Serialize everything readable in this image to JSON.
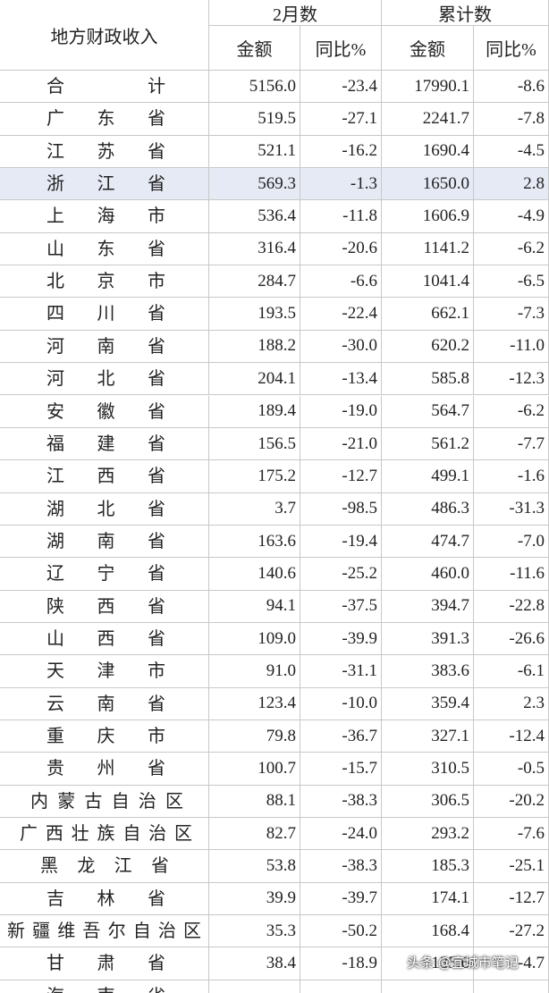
{
  "table": {
    "title": "地方财政收入",
    "groups": [
      "2月数",
      "累计数"
    ],
    "columns": [
      "金额",
      "同比%",
      "金额",
      "同比%"
    ],
    "rows": [
      [
        "合计",
        "5156.0",
        "-23.4",
        "17990.1",
        "-8.6"
      ],
      [
        "广东省",
        "519.5",
        "-27.1",
        "2241.7",
        "-7.8"
      ],
      [
        "江苏省",
        "521.1",
        "-16.2",
        "1690.4",
        "-4.5"
      ],
      [
        "浙江省",
        "569.3",
        "-1.3",
        "1650.0",
        "2.8"
      ],
      [
        "上海市",
        "536.4",
        "-11.8",
        "1606.9",
        "-4.9"
      ],
      [
        "山东省",
        "316.4",
        "-20.6",
        "1141.2",
        "-6.2"
      ],
      [
        "北京市",
        "284.7",
        "-6.6",
        "1041.4",
        "-6.5"
      ],
      [
        "四川省",
        "193.5",
        "-22.4",
        "662.1",
        "-7.3"
      ],
      [
        "河南省",
        "188.2",
        "-30.0",
        "620.2",
        "-11.0"
      ],
      [
        "河北省",
        "204.1",
        "-13.4",
        "585.8",
        "-12.3"
      ],
      [
        "安徽省",
        "189.4",
        "-19.0",
        "564.7",
        "-6.2"
      ],
      [
        "福建省",
        "156.5",
        "-21.0",
        "561.2",
        "-7.7"
      ],
      [
        "江西省",
        "175.2",
        "-12.7",
        "499.1",
        "-1.6"
      ],
      [
        "湖北省",
        "3.7",
        "-98.5",
        "486.3",
        "-31.3"
      ],
      [
        "湖南省",
        "163.6",
        "-19.4",
        "474.7",
        "-7.0"
      ],
      [
        "辽宁省",
        "140.6",
        "-25.2",
        "460.0",
        "-11.6"
      ],
      [
        "陕西省",
        "94.1",
        "-37.5",
        "394.7",
        "-22.8"
      ],
      [
        "山西省",
        "109.0",
        "-39.9",
        "391.3",
        "-26.6"
      ],
      [
        "天津市",
        "91.0",
        "-31.1",
        "383.6",
        "-6.1"
      ],
      [
        "云南省",
        "123.4",
        "-10.0",
        "359.4",
        "2.3"
      ],
      [
        "重庆市",
        "79.8",
        "-36.7",
        "327.1",
        "-12.4"
      ],
      [
        "贵州省",
        "100.7",
        "-15.7",
        "310.5",
        "-0.5"
      ],
      [
        "内蒙古自治区",
        "88.1",
        "-38.3",
        "306.5",
        "-20.2"
      ],
      [
        "广西壮族自治区",
        "82.7",
        "-24.0",
        "293.2",
        "-7.6"
      ],
      [
        "黑龙江省",
        "53.8",
        "-38.3",
        "185.3",
        "-25.1"
      ],
      [
        "吉林省",
        "39.9",
        "-39.7",
        "174.1",
        "-12.7"
      ],
      [
        "新疆维吾尔自治区",
        "35.3",
        "-50.2",
        "168.4",
        "-27.2"
      ],
      [
        "甘肃省",
        "38.4",
        "-18.9",
        "135.6",
        "-4.7"
      ],
      [
        "海南省"
      ]
    ]
  },
  "watermark": "头条 @宜城市笔记"
}
